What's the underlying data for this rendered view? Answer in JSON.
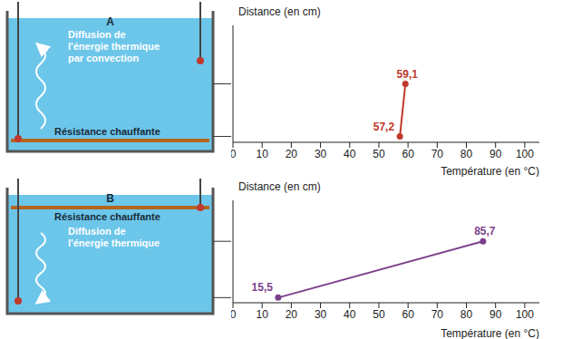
{
  "diagrams": [
    {
      "label": "A",
      "arrow_text": "Diffusion de l'énergie thermique par convection",
      "heater": "Résistance chauffante"
    },
    {
      "label": "B",
      "arrow_text": "Diffusion de l'énergie thermique",
      "heater": "Résistance chauffante"
    }
  ],
  "chart_data": [
    {
      "type": "line",
      "ylabel": "Distance (en cm)",
      "xlabel": "Température (en °C)",
      "x": [
        57.2,
        59.1
      ],
      "x_labels": [
        "57,2",
        "59,1"
      ],
      "values": [
        0.5,
        5
      ],
      "color": "#c0392b",
      "marker": "circle",
      "xlim": [
        0,
        105
      ],
      "xticks": [
        0,
        10,
        20,
        30,
        40,
        50,
        60,
        70,
        80,
        90,
        100
      ],
      "ylim": [
        0,
        10
      ],
      "tick_labels": "x",
      "grid": false
    },
    {
      "type": "line",
      "ylabel": "Distance (en cm)",
      "xlabel": "Température (en °C)",
      "x": [
        15.5,
        85.7
      ],
      "x_labels": [
        "15,5",
        "85,7"
      ],
      "values": [
        0.5,
        6
      ],
      "color": "#7b3f8c",
      "marker": "circle",
      "xlim": [
        0,
        105
      ],
      "xticks": [
        0,
        10,
        20,
        30,
        40,
        50,
        60,
        70,
        80,
        90,
        100
      ],
      "ylim": [
        0,
        10
      ],
      "tick_labels": "x",
      "grid": false
    }
  ]
}
